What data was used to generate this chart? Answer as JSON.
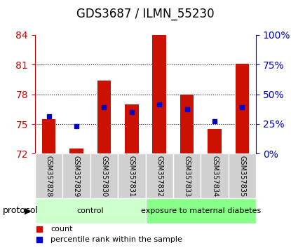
{
  "title": "GDS3687 / ILMN_55230",
  "samples": [
    "GSM357828",
    "GSM357829",
    "GSM357830",
    "GSM357831",
    "GSM357832",
    "GSM357833",
    "GSM357834",
    "GSM357835"
  ],
  "red_values": [
    75.5,
    72.5,
    79.4,
    77.0,
    84.2,
    78.0,
    74.5,
    81.1
  ],
  "blue_values": [
    75.8,
    74.8,
    76.7,
    76.2,
    77.0,
    76.5,
    75.3,
    76.7
  ],
  "base": 72,
  "ylim_left": [
    72,
    84
  ],
  "yticks_left": [
    72,
    75,
    78,
    81,
    84
  ],
  "yticks_right": [
    0,
    25,
    50,
    75,
    100
  ],
  "left_color": "#cc0000",
  "right_color": "#0000cc",
  "bar_color": "#cc1100",
  "blue_marker_color": "#0000cc",
  "control_label": "control",
  "exposure_label": "exposure to maternal diabetes",
  "protocol_label": "protocol",
  "control_color": "#ccffcc",
  "exposure_color": "#88ff88",
  "n_control": 4,
  "n_exposure": 4,
  "legend_red": "count",
  "legend_blue": "percentile rank within the sample",
  "background_color": "#ffffff",
  "plot_bg": "#ffffff",
  "tick_label_color_left": "#cc0000",
  "tick_label_color_right": "#0000cc"
}
